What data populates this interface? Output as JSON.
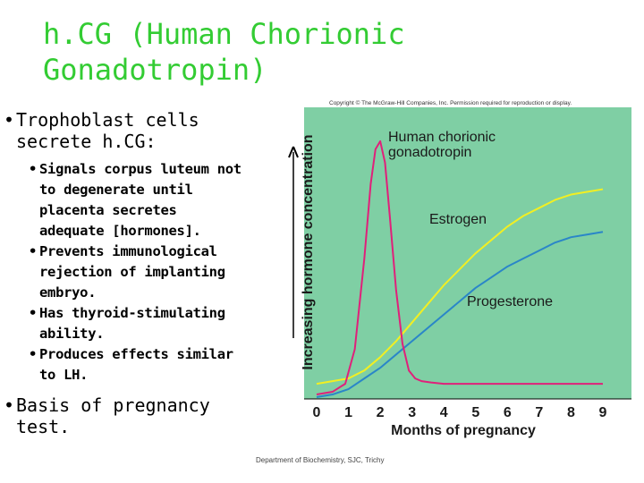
{
  "title": {
    "line1": "h.CG (Human Chorionic",
    "line2": "Gonadotropin)"
  },
  "bullets": {
    "b1": [
      "Trophoblast cells",
      "secrete h.CG:"
    ],
    "sub": [
      [
        "Signals corpus luteum not",
        "to degenerate until",
        "placenta secretes",
        "adequate [hormones]."
      ],
      [
        "Prevents immunological",
        "rejection of implanting",
        "embryo."
      ],
      [
        "Has thyroid-stimulating",
        "ability."
      ],
      [
        "Produces effects similar",
        "to LH."
      ]
    ],
    "b2": [
      "Basis of pregnancy",
      "test."
    ]
  },
  "copyright": "Copyright © The McGraw-Hill Companies, Inc. Permission required for reproduction or display.",
  "footer": "Department of Biochemistry, SJC, Trichy",
  "chart_data": {
    "type": "line",
    "xlabel": "Months of pregnancy",
    "ylabel": "Increasing hormone concentration",
    "xlim": [
      0,
      9
    ],
    "ylim": [
      0,
      100
    ],
    "ticks": [
      "0",
      "1",
      "2",
      "3",
      "4",
      "5",
      "6",
      "7",
      "8",
      "9"
    ],
    "grid": false,
    "background": "#7fcfa4",
    "series": [
      {
        "name": "Human chorionic gonadotropin",
        "label_lines": [
          "Human chorionic",
          "gonadotropin"
        ],
        "color": "#e0207a",
        "x": [
          0,
          0.5,
          0.9,
          1.2,
          1.5,
          1.7,
          1.85,
          2.0,
          2.15,
          2.3,
          2.5,
          2.7,
          2.9,
          3.1,
          3.3,
          3.6,
          4,
          5,
          6,
          7,
          8,
          9
        ],
        "y": [
          1,
          2,
          5,
          18,
          52,
          80,
          93,
          96,
          88,
          68,
          40,
          20,
          10,
          7,
          6,
          5.5,
          5,
          5,
          5,
          5,
          5,
          5
        ]
      },
      {
        "name": "Estrogen",
        "label_lines": [
          "Estrogen"
        ],
        "color": "#f2ef22",
        "x": [
          0,
          0.5,
          1,
          1.5,
          2,
          2.5,
          3,
          3.5,
          4,
          4.5,
          5,
          5.5,
          6,
          6.5,
          7,
          7.5,
          8,
          8.5,
          9
        ],
        "y": [
          5,
          6,
          7,
          10,
          15,
          21,
          28,
          35,
          42,
          48,
          54,
          59,
          64,
          68,
          71,
          74,
          76,
          77,
          78
        ]
      },
      {
        "name": "Progesterone",
        "label_lines": [
          "Progesterone"
        ],
        "color": "#2a86c8",
        "x": [
          0,
          0.5,
          1,
          1.5,
          2,
          2.5,
          3,
          3.5,
          4,
          4.5,
          5,
          5.5,
          6,
          6.5,
          7,
          7.5,
          8,
          8.5,
          9
        ],
        "y": [
          0,
          1,
          3,
          7,
          11,
          16,
          21,
          26,
          31,
          36,
          41,
          45,
          49,
          52,
          55,
          58,
          60,
          61,
          62
        ]
      }
    ]
  }
}
